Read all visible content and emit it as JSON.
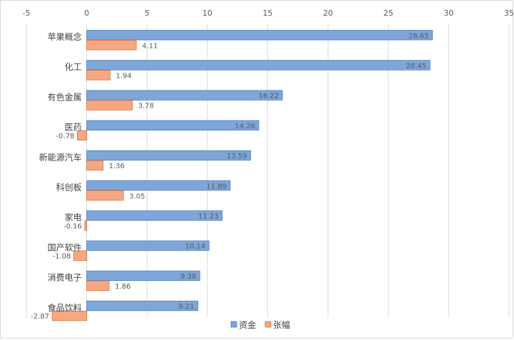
{
  "chart_data": {
    "type": "bar",
    "orientation": "horizontal",
    "categories": [
      "苹果概念",
      "化工",
      "有色金属",
      "医药",
      "新能源汽车",
      "科创板",
      "家电",
      "国产软件",
      "消费电子",
      "食品饮料"
    ],
    "series": [
      {
        "name": "资金",
        "values": [
          28.65,
          28.45,
          16.22,
          14.26,
          13.59,
          11.89,
          11.23,
          10.14,
          9.38,
          9.21
        ],
        "color": "#7ea6d9",
        "stroke": "#4a7ebb"
      },
      {
        "name": "张幅",
        "values": [
          4.11,
          1.94,
          3.78,
          -0.78,
          1.36,
          3.05,
          -0.16,
          -1.08,
          1.86,
          -2.87
        ],
        "color": "#f7a882",
        "stroke": "#d9733f"
      }
    ],
    "xlim": [
      -5,
      35
    ],
    "xticks": [
      "-5",
      "0",
      "5",
      "10",
      "15",
      "20",
      "25",
      "30",
      "35"
    ],
    "grid": true,
    "legend_position": "bottom"
  }
}
